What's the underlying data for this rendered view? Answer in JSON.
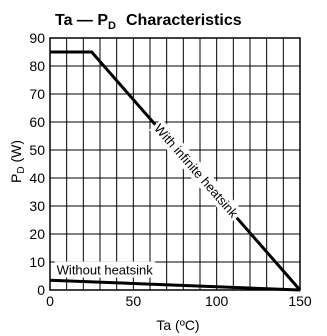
{
  "chart_data": {
    "type": "line",
    "title_main": "Ta — P",
    "title_sub": "D",
    "title_rest": "Characteristics",
    "xlabel": "Ta  (ºC)",
    "ylabel_main": "P",
    "ylabel_sub": "D",
    "ylabel_unit": " (W)",
    "xlim": [
      0,
      150
    ],
    "ylim": [
      0,
      90
    ],
    "grid": true,
    "x_grid_step": 10,
    "y_grid_step": 10,
    "x_ticks": [
      0,
      50,
      100,
      150
    ],
    "y_ticks": [
      0,
      10,
      20,
      30,
      40,
      50,
      60,
      70,
      80,
      90
    ],
    "series": [
      {
        "name": "With infinite heatsink",
        "x": [
          0,
          25,
          150
        ],
        "y": [
          85,
          85,
          0
        ]
      },
      {
        "name": "Without heatsink",
        "x": [
          0,
          150
        ],
        "y": [
          3.5,
          0
        ]
      }
    ]
  }
}
